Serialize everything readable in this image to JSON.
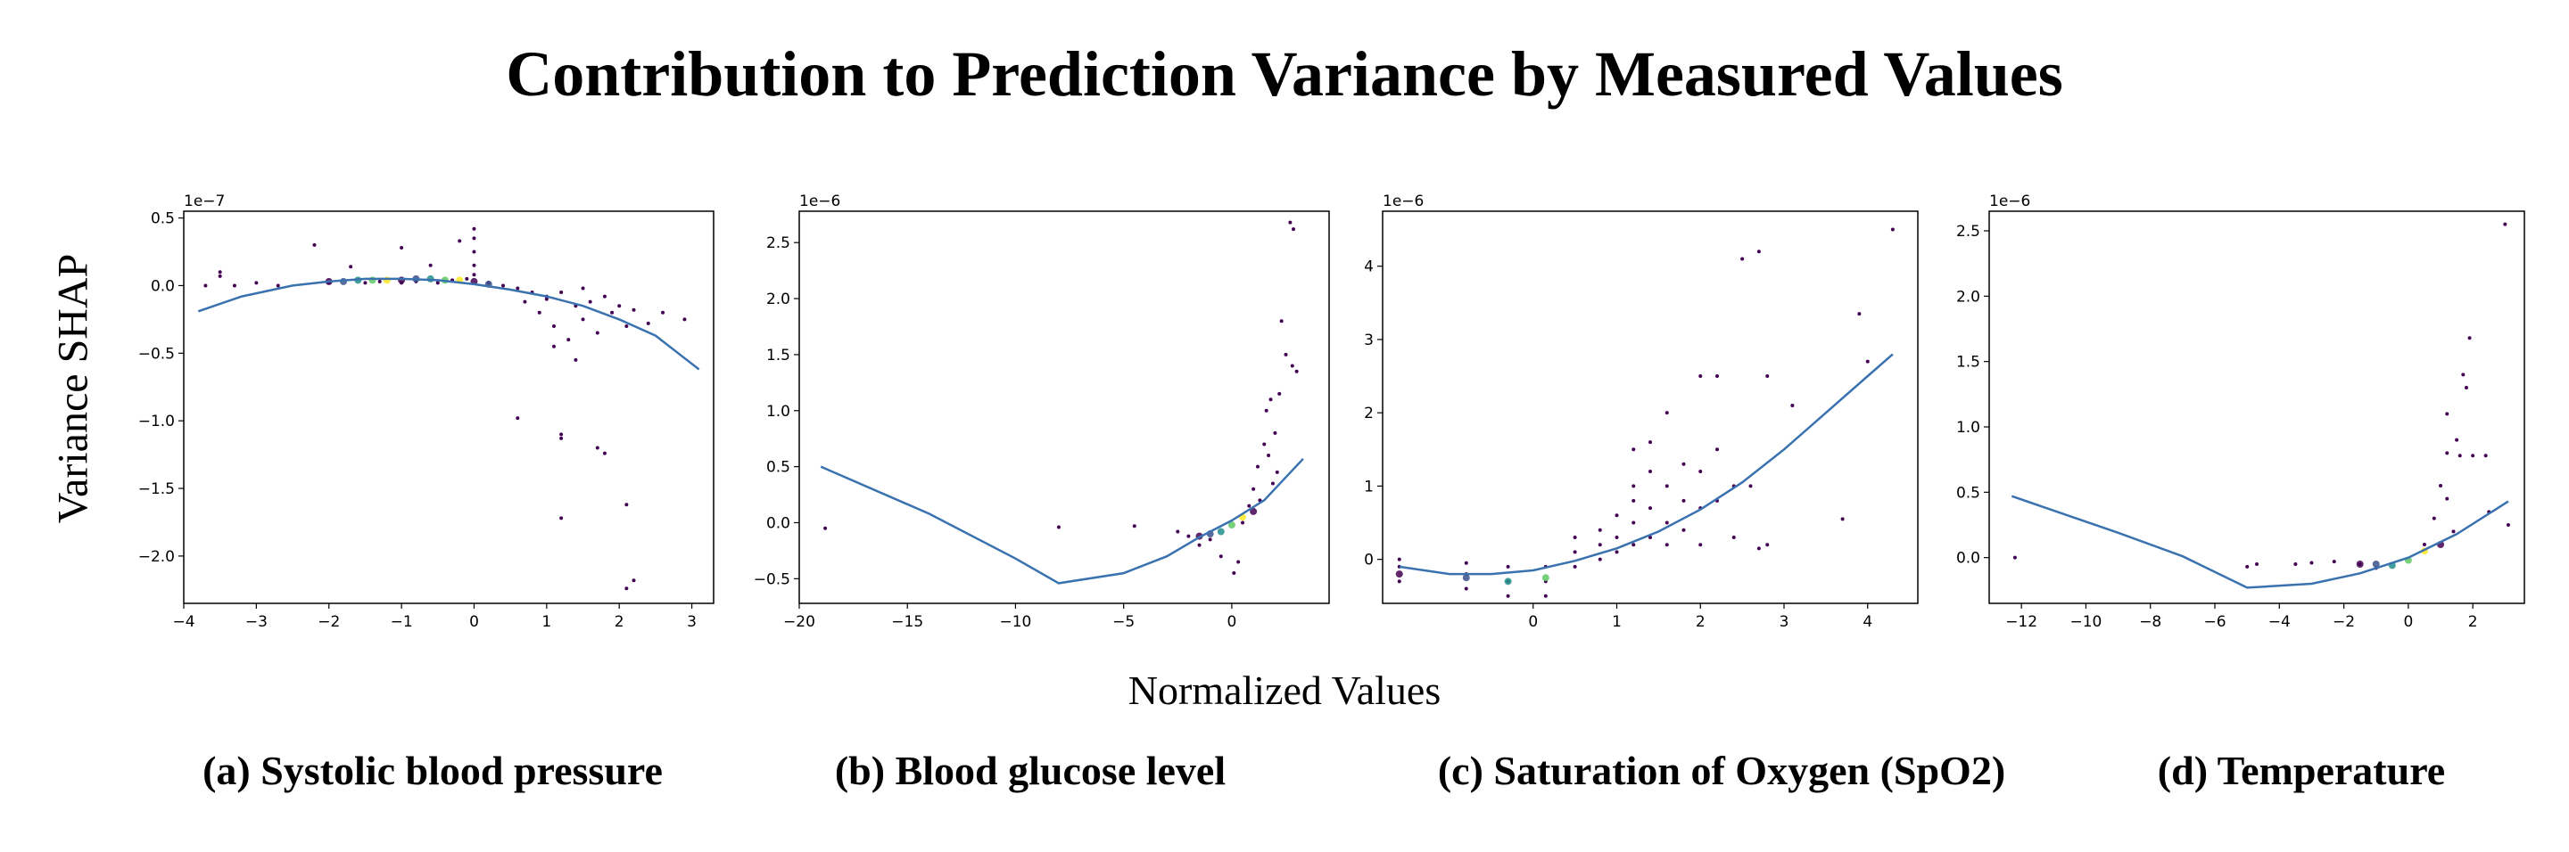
{
  "figure": {
    "title": "Contribution to Prediction Variance by Measured Values",
    "ylabel": "Variance SHAP",
    "xlabel": "Normalized Values"
  },
  "colors": {
    "curve": "#3a72b0",
    "dots_low": "#440154",
    "dots_mid": "#21918c",
    "dots_high": "#fde725"
  },
  "chart_data": [
    {
      "type": "scatter",
      "caption": "(a) Systolic blood pressure",
      "multiplier": "1e−7",
      "xlim": [
        -4,
        3.3
      ],
      "ylim": [
        -2.35,
        0.55
      ],
      "xticks": [
        -4,
        -3,
        -2,
        -1,
        0,
        1,
        2,
        3
      ],
      "xtick_labels": [
        "−4",
        "−3",
        "−2",
        "−1",
        "0",
        "1",
        "2",
        "3"
      ],
      "yticks": [
        0.5,
        0.0,
        -0.5,
        -1.0,
        -1.5,
        -2.0
      ],
      "ytick_labels": [
        "0.5",
        "0.0",
        "−0.5",
        "−1.0",
        "−1.5",
        "−2.0"
      ],
      "trend_line": {
        "x": [
          -3.8,
          -3.2,
          -2.5,
          -2.0,
          -1.5,
          -1.0,
          -0.5,
          0,
          0.5,
          1.0,
          1.5,
          2.0,
          2.5,
          3.1
        ],
        "y": [
          -0.19,
          -0.08,
          0.0,
          0.03,
          0.05,
          0.05,
          0.04,
          0.01,
          -0.03,
          -0.08,
          -0.15,
          -0.25,
          -0.37,
          -0.62
        ]
      },
      "points": [
        [
          -3.7,
          0.0
        ],
        [
          -3.5,
          0.1
        ],
        [
          -3.5,
          0.07
        ],
        [
          -3.3,
          0.0
        ],
        [
          -3.0,
          0.02
        ],
        [
          -2.7,
          0.0
        ],
        [
          -2.2,
          0.3
        ],
        [
          -2.0,
          0.02
        ],
        [
          -1.7,
          0.14
        ],
        [
          -1.5,
          0.02
        ],
        [
          -1.3,
          0.03
        ],
        [
          -1.0,
          0.28
        ],
        [
          -1.0,
          0.02
        ],
        [
          -0.8,
          0.03
        ],
        [
          -0.6,
          0.15
        ],
        [
          -0.5,
          0.02
        ],
        [
          -0.3,
          0.04
        ],
        [
          -0.2,
          0.33
        ],
        [
          -0.1,
          0.05
        ],
        [
          0,
          0.42
        ],
        [
          0,
          0.35
        ],
        [
          0,
          0.25
        ],
        [
          0,
          0.15
        ],
        [
          0,
          0.08
        ],
        [
          0.2,
          0.02
        ],
        [
          0.4,
          0.0
        ],
        [
          0.6,
          -0.02
        ],
        [
          0.8,
          -0.05
        ],
        [
          0.9,
          -0.2
        ],
        [
          1.0,
          -0.1
        ],
        [
          1.1,
          -0.3
        ],
        [
          1.2,
          -0.05
        ],
        [
          1.3,
          -0.4
        ],
        [
          1.4,
          -0.15
        ],
        [
          1.5,
          -0.25
        ],
        [
          1.6,
          -0.12
        ],
        [
          1.7,
          -0.35
        ],
        [
          1.8,
          -0.08
        ],
        [
          1.9,
          -0.2
        ],
        [
          2.0,
          -0.15
        ],
        [
          2.1,
          -0.3
        ],
        [
          2.2,
          -0.18
        ],
        [
          2.4,
          -0.28
        ],
        [
          2.6,
          -0.2
        ],
        [
          2.9,
          -0.25
        ],
        [
          0.6,
          -0.98
        ],
        [
          1.2,
          -1.1
        ],
        [
          1.2,
          -1.13
        ],
        [
          1.7,
          -1.2
        ],
        [
          1.8,
          -1.24
        ],
        [
          1.2,
          -1.72
        ],
        [
          2.1,
          -1.62
        ],
        [
          2.2,
          -2.18
        ],
        [
          2.1,
          -2.24
        ],
        [
          1.0,
          -0.08
        ],
        [
          1.5,
          -0.02
        ],
        [
          0.7,
          -0.12
        ],
        [
          1.1,
          -0.45
        ],
        [
          1.4,
          -0.55
        ]
      ],
      "dense_points": [
        [
          -2.0,
          0.03
        ],
        [
          -1.8,
          0.03
        ],
        [
          -1.6,
          0.04
        ],
        [
          -1.4,
          0.04
        ],
        [
          -1.2,
          0.04
        ],
        [
          -1.0,
          0.04
        ],
        [
          -0.8,
          0.05
        ],
        [
          -0.6,
          0.05
        ],
        [
          -0.4,
          0.04
        ],
        [
          -0.2,
          0.04
        ],
        [
          0.0,
          0.03
        ],
        [
          0.2,
          0.01
        ]
      ]
    },
    {
      "type": "scatter",
      "caption": "(b) Blood glucose level",
      "multiplier": "1e−6",
      "xlim": [
        -20,
        4.5
      ],
      "ylim": [
        -0.72,
        2.78
      ],
      "xticks": [
        -20,
        -15,
        -10,
        -5,
        0
      ],
      "xtick_labels": [
        "−20",
        "−15",
        "−10",
        "−5",
        "0"
      ],
      "yticks": [
        2.5,
        2.0,
        1.5,
        1.0,
        0.5,
        0.0,
        -0.5
      ],
      "ytick_labels": [
        "2.5",
        "2.0",
        "1.5",
        "1.0",
        "0.5",
        "0.0",
        "−0.5"
      ],
      "trend_line": {
        "x": [
          -19,
          -14,
          -10,
          -8,
          -5,
          -3,
          -1.5,
          0,
          1.5,
          3.3
        ],
        "y": [
          0.5,
          0.08,
          -0.32,
          -0.54,
          -0.45,
          -0.3,
          -0.13,
          0.02,
          0.2,
          0.57
        ]
      },
      "points": [
        [
          -18.8,
          -0.05
        ],
        [
          -8,
          -0.04
        ],
        [
          -4.5,
          -0.03
        ],
        [
          -2.5,
          -0.08
        ],
        [
          -2,
          -0.12
        ],
        [
          -1.5,
          -0.2
        ],
        [
          -1,
          -0.15
        ],
        [
          0.5,
          0.0
        ],
        [
          1,
          0.3
        ],
        [
          1.2,
          0.5
        ],
        [
          1.5,
          0.7
        ],
        [
          1.6,
          1.0
        ],
        [
          1.8,
          1.1
        ],
        [
          2,
          0.8
        ],
        [
          2.1,
          0.45
        ],
        [
          2.3,
          1.8
        ],
        [
          2.5,
          1.5
        ],
        [
          2.8,
          1.4
        ],
        [
          3.0,
          1.35
        ],
        [
          2.7,
          2.68
        ],
        [
          2.85,
          2.62
        ],
        [
          1.3,
          0.2
        ],
        [
          0.8,
          0.15
        ],
        [
          1.7,
          0.6
        ],
        [
          0.3,
          -0.35
        ],
        [
          0.1,
          -0.45
        ],
        [
          -0.5,
          -0.3
        ],
        [
          2.2,
          1.15
        ],
        [
          1.9,
          0.35
        ]
      ],
      "dense_points": [
        [
          -1.5,
          -0.12
        ],
        [
          -1.0,
          -0.1
        ],
        [
          -0.5,
          -0.08
        ],
        [
          0,
          -0.02
        ],
        [
          0.5,
          0.05
        ],
        [
          1.0,
          0.1
        ]
      ]
    },
    {
      "type": "scatter",
      "caption": "(c) Saturation of Oxygen (SpO2)",
      "multiplier": "1e−6",
      "xlim": [
        -1.8,
        4.6
      ],
      "ylim": [
        -0.6,
        4.75
      ],
      "xticks": [
        0,
        1,
        2,
        3,
        4
      ],
      "xtick_labels": [
        "0",
        "1",
        "2",
        "3",
        "4"
      ],
      "yticks": [
        4,
        3,
        2,
        1,
        0
      ],
      "ytick_labels": [
        "4",
        "3",
        "2",
        "1",
        "0"
      ],
      "trend_line": {
        "x": [
          -1.6,
          -1.0,
          -0.5,
          0.0,
          0.5,
          1.0,
          1.5,
          2.0,
          2.5,
          3.0,
          3.5,
          4.0,
          4.3
        ],
        "y": [
          -0.1,
          -0.2,
          -0.2,
          -0.15,
          -0.02,
          0.15,
          0.38,
          0.68,
          1.05,
          1.5,
          2.0,
          2.5,
          2.8
        ]
      },
      "points": [
        [
          -1.6,
          -0.3
        ],
        [
          -1.6,
          -0.1
        ],
        [
          -1.6,
          0.0
        ],
        [
          -0.8,
          -0.4
        ],
        [
          -0.8,
          -0.2
        ],
        [
          -0.8,
          -0.05
        ],
        [
          -0.3,
          -0.5
        ],
        [
          -0.3,
          -0.3
        ],
        [
          -0.3,
          -0.1
        ],
        [
          0.15,
          -0.5
        ],
        [
          0.15,
          -0.3
        ],
        [
          0.15,
          -0.1
        ],
        [
          0.5,
          0.3
        ],
        [
          0.5,
          0.1
        ],
        [
          0.5,
          -0.1
        ],
        [
          0.8,
          0.4
        ],
        [
          0.8,
          0.2
        ],
        [
          0.8,
          0.0
        ],
        [
          1.0,
          0.6
        ],
        [
          1.0,
          0.3
        ],
        [
          1.0,
          0.1
        ],
        [
          1.2,
          1.0
        ],
        [
          1.2,
          0.8
        ],
        [
          1.2,
          0.5
        ],
        [
          1.2,
          0.2
        ],
        [
          1.2,
          1.5
        ],
        [
          1.4,
          1.2
        ],
        [
          1.4,
          0.7
        ],
        [
          1.4,
          0.3
        ],
        [
          1.4,
          1.6
        ],
        [
          1.6,
          1.0
        ],
        [
          1.6,
          0.5
        ],
        [
          1.6,
          2.0
        ],
        [
          1.6,
          0.2
        ],
        [
          1.8,
          1.3
        ],
        [
          1.8,
          0.8
        ],
        [
          1.8,
          0.4
        ],
        [
          2.0,
          2.5
        ],
        [
          2.0,
          1.2
        ],
        [
          2.0,
          0.7
        ],
        [
          2.0,
          0.2
        ],
        [
          2.2,
          1.5
        ],
        [
          2.2,
          0.8
        ],
        [
          2.2,
          2.5
        ],
        [
          2.4,
          1.0
        ],
        [
          2.5,
          4.1
        ],
        [
          2.6,
          1.0
        ],
        [
          2.7,
          4.2
        ],
        [
          2.8,
          2.5
        ],
        [
          2.8,
          0.2
        ],
        [
          3.1,
          2.1
        ],
        [
          3.7,
          0.55
        ],
        [
          3.9,
          3.35
        ],
        [
          4.3,
          4.5
        ],
        [
          4.0,
          2.7
        ],
        [
          2.4,
          0.3
        ],
        [
          2.7,
          0.15
        ]
      ],
      "dense_points": [
        [
          -1.6,
          -0.2
        ],
        [
          -0.8,
          -0.25
        ],
        [
          -0.3,
          -0.3
        ],
        [
          0.15,
          -0.25
        ]
      ]
    },
    {
      "type": "scatter",
      "caption": "(d) Temperature",
      "multiplier": "1e−6",
      "xlim": [
        -13,
        3.6
      ],
      "ylim": [
        -0.35,
        2.65
      ],
      "xticks": [
        -12,
        -10,
        -8,
        -6,
        -4,
        -2,
        0,
        2
      ],
      "xtick_labels": [
        "−12",
        "−10",
        "−8",
        "−6",
        "−4",
        "−2",
        "0",
        "2"
      ],
      "yticks": [
        2.5,
        2.0,
        1.5,
        1.0,
        0.5,
        0.0
      ],
      "ytick_labels": [
        "2.5",
        "2.0",
        "1.5",
        "1.0",
        "0.5",
        "0.0"
      ],
      "trend_line": {
        "x": [
          -12.3,
          -9,
          -7,
          -5,
          -3,
          -1.5,
          0,
          1.5,
          3.1
        ],
        "y": [
          0.47,
          0.19,
          0.01,
          -0.23,
          -0.2,
          -0.12,
          0.0,
          0.18,
          0.43
        ]
      },
      "points": [
        [
          -12.2,
          0.0
        ],
        [
          -5,
          -0.07
        ],
        [
          -4.7,
          -0.05
        ],
        [
          -3.5,
          -0.05
        ],
        [
          -3,
          -0.04
        ],
        [
          -2.3,
          -0.03
        ],
        [
          -1.5,
          -0.05
        ],
        [
          -1,
          -0.08
        ],
        [
          0.5,
          0.1
        ],
        [
          0.8,
          0.3
        ],
        [
          1.0,
          0.55
        ],
        [
          1.2,
          0.8
        ],
        [
          1.2,
          1.1
        ],
        [
          1.5,
          0.9
        ],
        [
          1.7,
          1.4
        ],
        [
          1.8,
          1.3
        ],
        [
          1.9,
          1.68
        ],
        [
          2.0,
          0.78
        ],
        [
          2.4,
          0.78
        ],
        [
          1.6,
          0.78
        ],
        [
          1.2,
          0.45
        ],
        [
          3.0,
          2.55
        ],
        [
          3.1,
          0.25
        ],
        [
          2.5,
          0.35
        ],
        [
          1.4,
          0.2
        ]
      ],
      "dense_points": [
        [
          -1.5,
          -0.05
        ],
        [
          -1.0,
          -0.05
        ],
        [
          -0.5,
          -0.06
        ],
        [
          0,
          -0.02
        ],
        [
          0.5,
          0.05
        ],
        [
          1.0,
          0.1
        ]
      ]
    }
  ]
}
